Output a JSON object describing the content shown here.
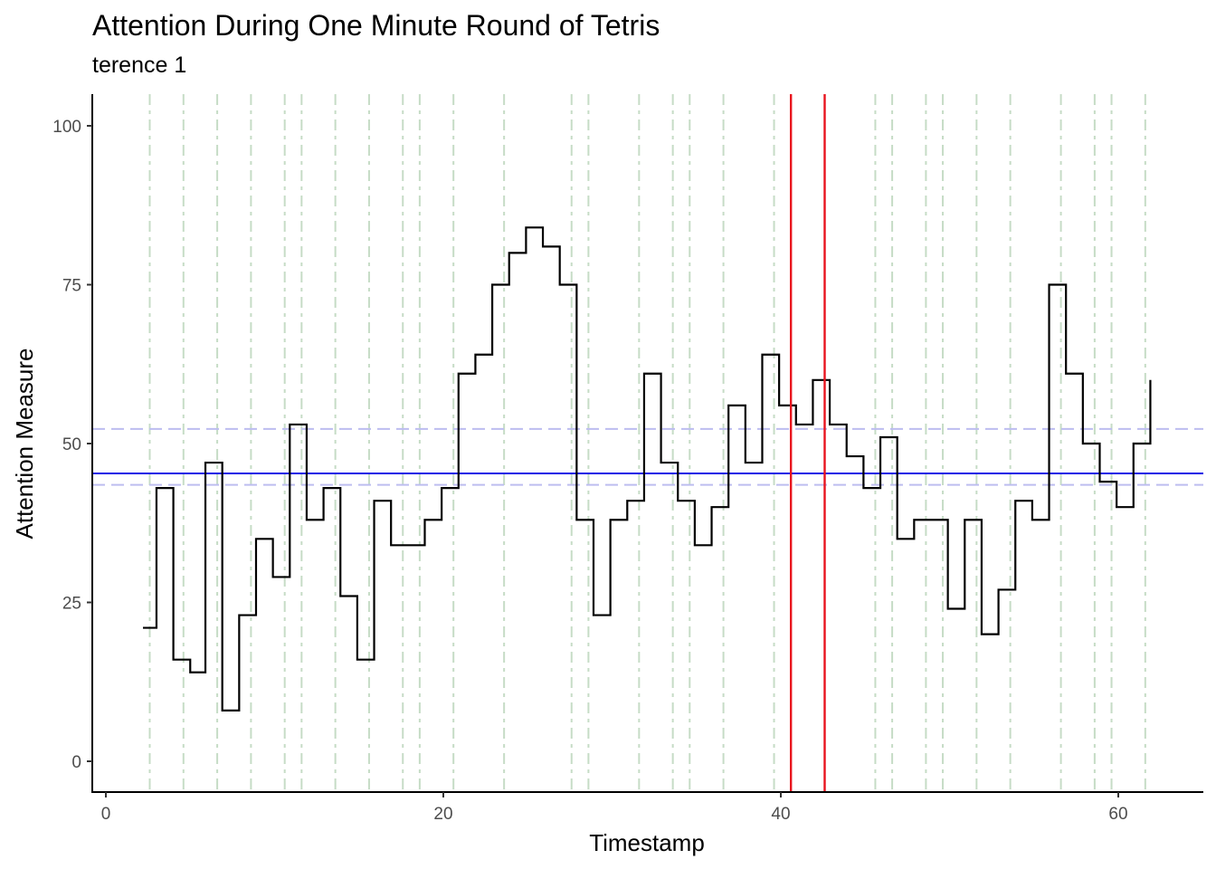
{
  "chart_data": {
    "type": "line",
    "title": "Attention During One Minute Round of Tetris",
    "subtitle": "terence 1",
    "xlabel": "Timestamp",
    "ylabel": "Attention Measure",
    "xlim": [
      0,
      65
    ],
    "ylim": [
      -5,
      105
    ],
    "x_ticks": [
      0,
      20,
      40,
      60
    ],
    "y_ticks": [
      0,
      25,
      50,
      75,
      100
    ],
    "grid": false,
    "series": [
      {
        "step": "hv",
        "color": "#000000",
        "x": [
          2.2,
          3.0,
          4.0,
          5.0,
          5.9,
          6.9,
          7.9,
          8.9,
          9.9,
          10.9,
          11.9,
          12.9,
          13.9,
          14.9,
          15.9,
          16.9,
          17.9,
          18.9,
          19.9,
          20.9,
          21.9,
          22.9,
          23.9,
          24.9,
          25.9,
          26.9,
          27.9,
          28.9,
          29.9,
          30.9,
          31.9,
          32.9,
          33.9,
          34.9,
          35.9,
          36.9,
          37.9,
          38.9,
          39.9,
          40.9,
          41.9,
          42.9,
          43.9,
          44.9,
          45.9,
          46.9,
          47.9,
          48.9,
          49.9,
          50.9,
          51.9,
          52.9,
          53.9,
          54.9,
          55.9,
          56.9,
          57.9,
          58.9,
          59.9,
          60.9,
          61.9
        ],
        "values": [
          21,
          43,
          16,
          14,
          47,
          8,
          23,
          35,
          29,
          53,
          38,
          43,
          26,
          16,
          41,
          34,
          34,
          38,
          43,
          61,
          64,
          75,
          80,
          84,
          81,
          75,
          38,
          23,
          38,
          41,
          61,
          47,
          41,
          34,
          40,
          56,
          47,
          64,
          56,
          53,
          60,
          53,
          48,
          43,
          51,
          35,
          38,
          38,
          24,
          38,
          20,
          27,
          41,
          38,
          75,
          61,
          50,
          44,
          40,
          50,
          60
        ]
      }
    ],
    "vlines_event": {
      "color": "#c6dcc6",
      "style": "dashed",
      "x": [
        2.6,
        4.6,
        6.6,
        8.6,
        10.6,
        11.6,
        13.6,
        15.6,
        17.6,
        18.6,
        20.6,
        23.6,
        27.6,
        28.6,
        31.6,
        33.6,
        34.6,
        36.6,
        39.6,
        45.6,
        46.6,
        48.6,
        49.6,
        51.6,
        53.6,
        56.6,
        58.6,
        59.6,
        61.6
      ]
    },
    "vlines_marker": {
      "color": "#e8141e",
      "x": [
        40.6,
        42.6
      ]
    },
    "hline_mean": {
      "color": "#1414e6",
      "y": 45.3
    },
    "hlines_band": {
      "color": "#bdbdf0",
      "style": "dashed",
      "y": [
        52.3,
        43.5
      ]
    }
  }
}
